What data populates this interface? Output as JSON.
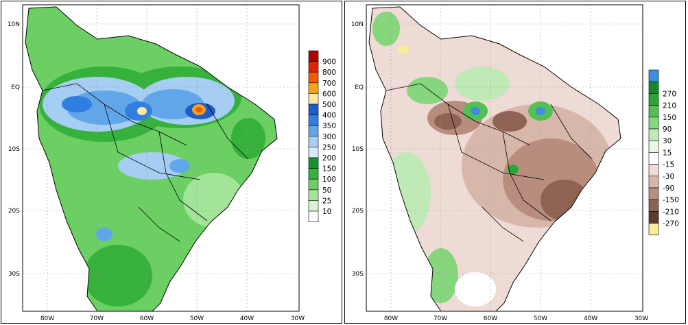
{
  "maps": [
    {
      "id": "left",
      "x_ticks": [
        "80W",
        "70W",
        "60W",
        "50W",
        "40W",
        "30W"
      ],
      "y_ticks": [
        "10N",
        "EQ",
        "10S",
        "20S",
        "30S"
      ],
      "legend": [
        {
          "label": "900",
          "color": "#b30000"
        },
        {
          "label": "800",
          "color": "#e32000"
        },
        {
          "label": "700",
          "color": "#f55a00"
        },
        {
          "label": "600",
          "color": "#f7a21a"
        },
        {
          "label": "500",
          "color": "#fbe8a0"
        },
        {
          "label": "400",
          "color": "#1e5cc9"
        },
        {
          "label": "350",
          "color": "#2f7fe0"
        },
        {
          "label": "300",
          "color": "#62a6ea"
        },
        {
          "label": "250",
          "color": "#a6cdf2"
        },
        {
          "label": "200",
          "color": "#d8e9f8"
        },
        {
          "label": "150",
          "color": "#17912d"
        },
        {
          "label": "100",
          "color": "#35b13c"
        },
        {
          "label": "50",
          "color": "#6bcf63"
        },
        {
          "label": "25",
          "color": "#a2e49a"
        },
        {
          "label": "10",
          "color": "#d6f5cf"
        },
        {
          "label": "",
          "color": "#ffffff"
        }
      ]
    },
    {
      "id": "right",
      "x_ticks": [
        "80W",
        "70W",
        "60W",
        "50W",
        "40W",
        "30W"
      ],
      "y_ticks": [
        "10N",
        "EQ",
        "10S",
        "20S",
        "30S"
      ],
      "legend": [
        {
          "label": "",
          "color": "#3b8fe0"
        },
        {
          "label": "270",
          "color": "#148a28"
        },
        {
          "label": "210",
          "color": "#2aa53a"
        },
        {
          "label": "150",
          "color": "#52c052"
        },
        {
          "label": "90",
          "color": "#86d67e"
        },
        {
          "label": "30",
          "color": "#bfeab5"
        },
        {
          "label": "15",
          "color": "#e9f7e4"
        },
        {
          "label": "-15",
          "color": "#ffffff"
        },
        {
          "label": "-30",
          "color": "#eedbd6"
        },
        {
          "label": "-90",
          "color": "#d8b7ab"
        },
        {
          "label": "-150",
          "color": "#b98d7e"
        },
        {
          "label": "-210",
          "color": "#8f6354"
        },
        {
          "label": "-270",
          "color": "#5e3a2d"
        },
        {
          "label": "",
          "color": "#f7ee9a"
        }
      ]
    }
  ]
}
